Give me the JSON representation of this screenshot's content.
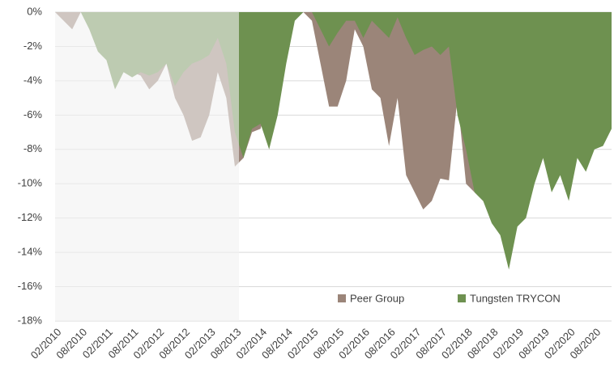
{
  "chart_data": {
    "type": "area",
    "categories": [
      "02/2010",
      null,
      null,
      "08/2010",
      null,
      null,
      "02/2011",
      null,
      null,
      "08/2011",
      null,
      null,
      "02/2012",
      null,
      null,
      "08/2012",
      null,
      null,
      "02/2013",
      null,
      null,
      "08/2013",
      null,
      null,
      "02/2014",
      null,
      null,
      "08/2014",
      null,
      null,
      "02/2015",
      null,
      null,
      "08/2015",
      null,
      null,
      "02/2016",
      null,
      null,
      "08/2016",
      null,
      null,
      "02/2017",
      null,
      null,
      "08/2017",
      null,
      null,
      "02/2018",
      null,
      null,
      "08/2018",
      null,
      null,
      "02/2019",
      null,
      null,
      "08/2019",
      null,
      null,
      "02/2020",
      null,
      null,
      "08/2020",
      null,
      null
    ],
    "series": [
      {
        "name": "Peer Group",
        "color": "#9b8579",
        "values": [
          0,
          -0.5,
          -1,
          0,
          0,
          -1,
          -2,
          -3,
          -3.5,
          -3.5,
          -3.7,
          -4.5,
          -4,
          -3,
          -5,
          -6,
          -7.5,
          -7.3,
          -6,
          -3.5,
          -5,
          -9,
          -8.5,
          -7,
          -6.8,
          -5,
          -2,
          -0.3,
          0,
          0,
          -0.5,
          -3,
          -5.5,
          -5.5,
          -4,
          -1,
          -2,
          -4.5,
          -5,
          -7.8,
          -5,
          -9.5,
          -10.5,
          -11.5,
          -11,
          -9.7,
          -9.8,
          -5,
          -10,
          -10.5,
          -11,
          -10,
          -8,
          -6,
          -5,
          -4,
          -4.5,
          -4,
          -4,
          -4.5,
          -4,
          -4,
          -4,
          -3.5,
          -3,
          -3
        ]
      },
      {
        "name": "Tungsten TRYCON",
        "color": "#6e9150",
        "values": [
          0,
          0,
          0,
          0,
          -1,
          -2.3,
          -2.8,
          -4.5,
          -3.5,
          -3.8,
          -3.5,
          -3.7,
          -3.5,
          -3,
          -4.3,
          -3.5,
          -3,
          -2.8,
          -2.5,
          -1.5,
          -3,
          -7,
          -8.5,
          -6.8,
          -6.5,
          -8,
          -6,
          -3,
          -0.5,
          0,
          0,
          -1,
          -2,
          -1.2,
          -0.5,
          -0.5,
          -1.5,
          -0.5,
          -1,
          -1.5,
          -0.3,
          -1.5,
          -2.5,
          -2.2,
          -2,
          -2.5,
          -2,
          -6,
          -8,
          -10.5,
          -11,
          -12.3,
          -13,
          -15,
          -12.5,
          -12,
          -10,
          -8.5,
          -10.5,
          -9.5,
          -11,
          -8.5,
          -9.3,
          -8,
          -7.8,
          -6.8
        ]
      }
    ],
    "ylim": [
      -18,
      0
    ],
    "yticks": [
      {
        "value": 0,
        "label": "0%"
      },
      {
        "value": -2,
        "label": "-2%"
      },
      {
        "value": -4,
        "label": "-4%"
      },
      {
        "value": -6,
        "label": "-6%"
      },
      {
        "value": -8,
        "label": "-8%"
      },
      {
        "value": -10,
        "label": "-10%"
      },
      {
        "value": -12,
        "label": "-12%"
      },
      {
        "value": -14,
        "label": "-14%"
      },
      {
        "value": -16,
        "label": "-16%"
      },
      {
        "value": -18,
        "label": "-18%"
      }
    ],
    "grid": true
  }
}
